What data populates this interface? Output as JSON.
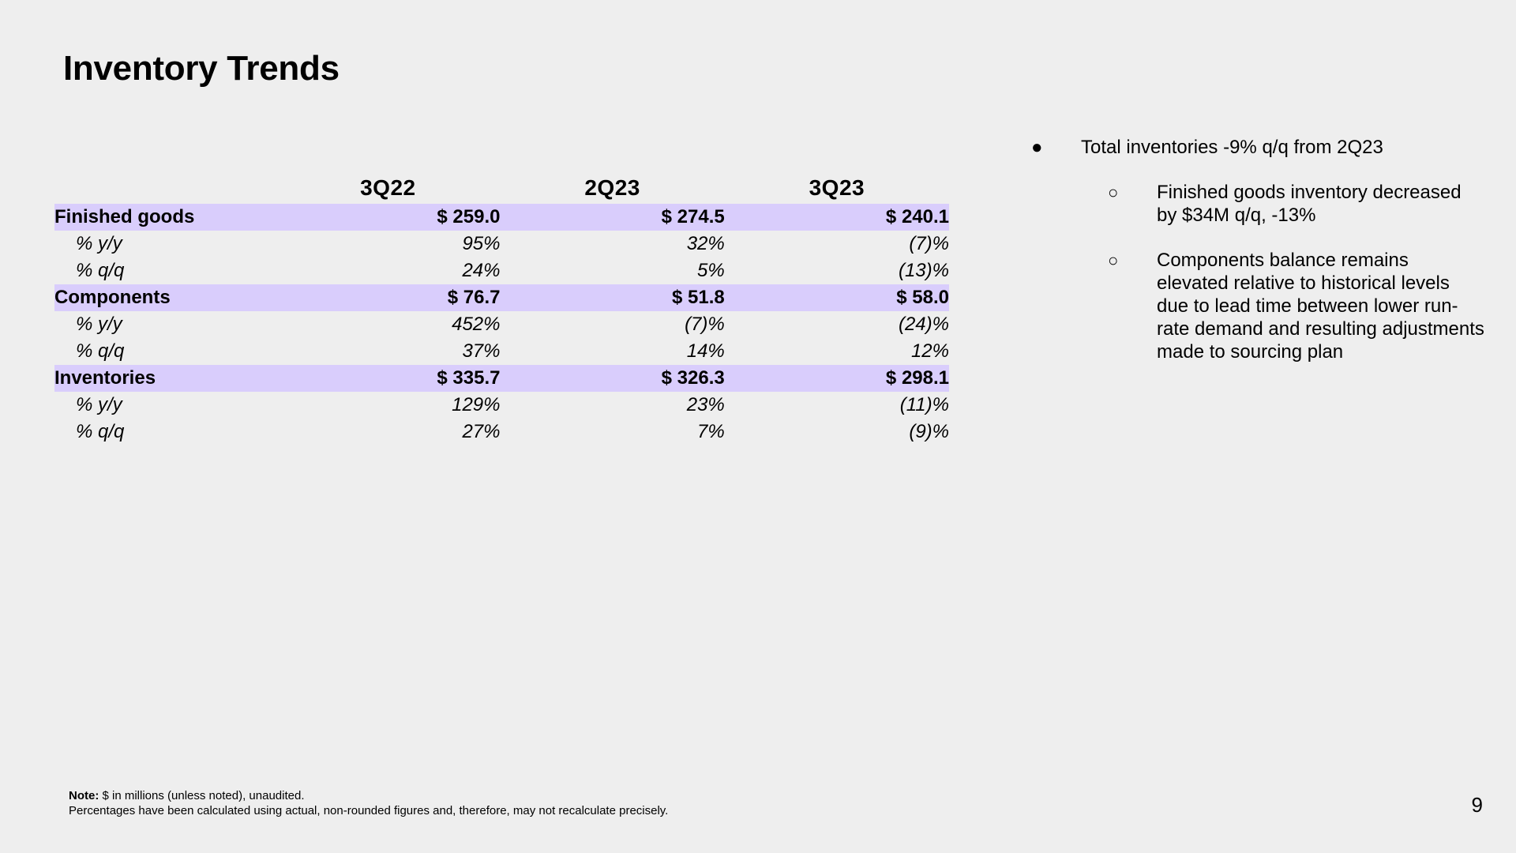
{
  "title": "Inventory Trends",
  "table": {
    "columns": [
      "3Q22",
      "2Q23",
      "3Q23"
    ],
    "rows": [
      {
        "label": "Finished goods",
        "values": [
          "$ 259.0",
          "$ 274.5",
          "$ 240.1"
        ]
      },
      {
        "label": "% y/y",
        "values": [
          "95%",
          "32%",
          "(7)%"
        ]
      },
      {
        "label": "% q/q",
        "values": [
          "24%",
          "5%",
          "(13)%"
        ]
      },
      {
        "label": "Components",
        "values": [
          "$ 76.7",
          "$ 51.8",
          "$ 58.0"
        ]
      },
      {
        "label": "% y/y",
        "values": [
          "452%",
          "(7)%",
          "(24)%"
        ]
      },
      {
        "label": "% q/q",
        "values": [
          "37%",
          "14%",
          "12%"
        ]
      },
      {
        "label": "Inventories",
        "values": [
          "$ 335.7",
          "$ 326.3",
          "$ 298.1"
        ]
      },
      {
        "label": "% y/y",
        "values": [
          "129%",
          "23%",
          "(11)%"
        ]
      },
      {
        "label": "% q/q",
        "values": [
          "27%",
          "7%",
          "(9)%"
        ]
      }
    ]
  },
  "bullets": {
    "main": {
      "marker": "●",
      "text": "Total inventories -9% q/q from 2Q23"
    },
    "subs": [
      {
        "marker": "○",
        "text": "Finished goods inventory decreased by $34M q/q, -13%"
      },
      {
        "marker": "○",
        "text": "Components balance remains elevated relative to historical levels due to lead time between lower run-rate demand and resulting adjustments made to sourcing plan"
      }
    ]
  },
  "note": {
    "label": "Note:",
    "line1": "$ in millions (unless noted), unaudited.",
    "line2": "Percentages have been calculated using actual, non-rounded figures and, therefore, may not recalculate precisely."
  },
  "page_number": "9",
  "colors": {
    "background": "#eeeeee",
    "highlight_row": "#d9cdfc",
    "text": "#000000"
  }
}
